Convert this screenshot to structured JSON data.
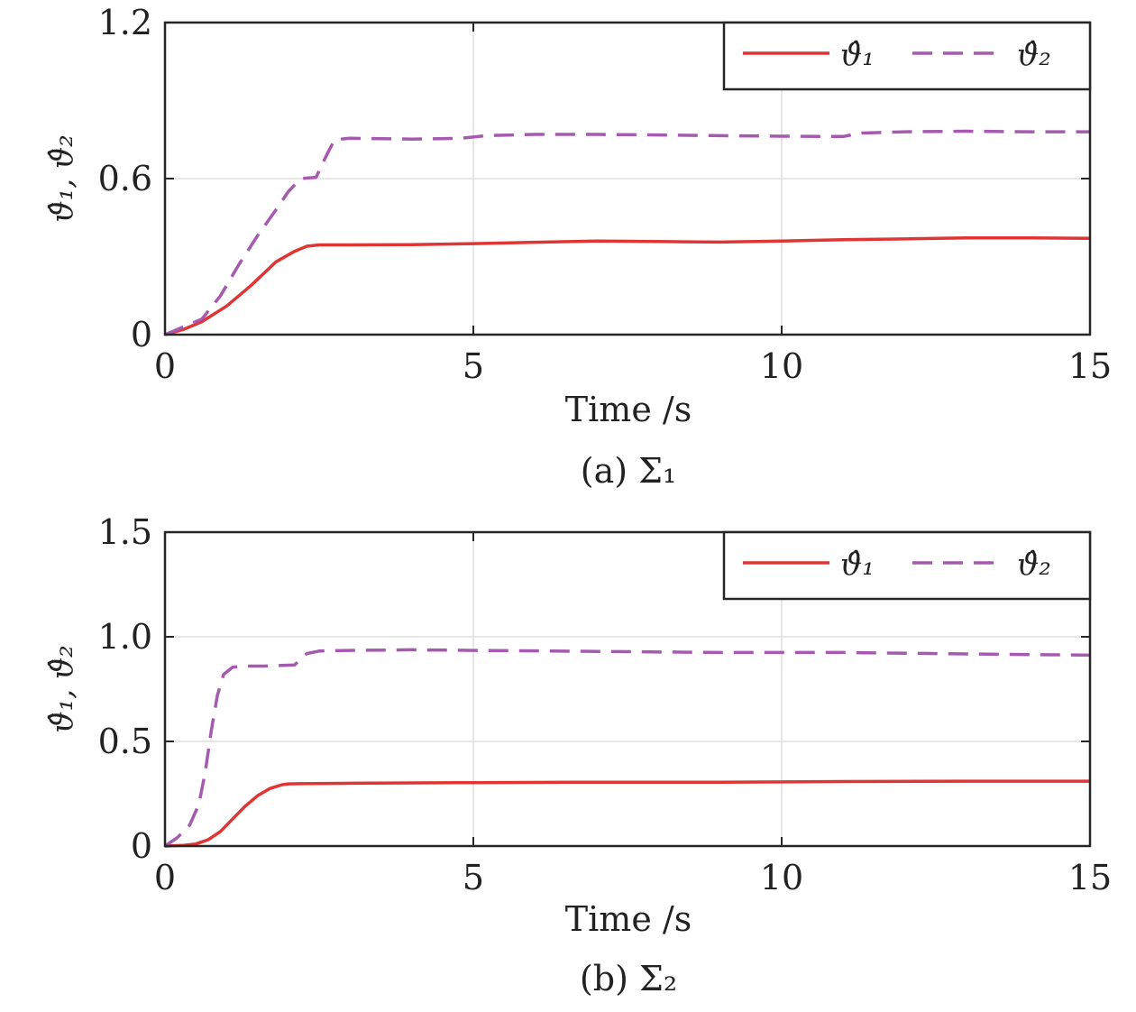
{
  "figure": {
    "colors": {
      "series1": "#e03535",
      "series2": "#a65aaf",
      "grid": "#dddddd",
      "axis": "#262626"
    }
  },
  "chart_data": [
    {
      "type": "line",
      "caption": "(a) Σ₁",
      "xlabel": "Time /s",
      "ylabel": "ϑ̂₁, ϑ̂₂",
      "xlim": [
        0,
        15
      ],
      "ylim": [
        0,
        1.2
      ],
      "xticks": [
        0,
        5,
        10,
        15
      ],
      "xtick_labels": [
        "0",
        "5",
        "10",
        "15"
      ],
      "yticks": [
        0,
        0.6,
        1.2
      ],
      "ytick_labels": [
        "0",
        "0.6",
        "1.2"
      ],
      "grid": true,
      "legend_position": "top-right",
      "series": [
        {
          "name": "ϑ̂₁",
          "style": "solid",
          "color": "#e03535",
          "x": [
            0,
            0.3,
            0.6,
            1.0,
            1.4,
            1.8,
            2.1,
            2.3,
            2.5,
            3.0,
            4.0,
            5.0,
            6.0,
            7.0,
            8.0,
            9.0,
            10.0,
            11.0,
            12.0,
            13.0,
            14.0,
            15.0
          ],
          "y": [
            0,
            0.02,
            0.05,
            0.11,
            0.19,
            0.28,
            0.32,
            0.34,
            0.345,
            0.345,
            0.346,
            0.35,
            0.355,
            0.36,
            0.358,
            0.356,
            0.36,
            0.365,
            0.368,
            0.372,
            0.372,
            0.37
          ]
        },
        {
          "name": "ϑ̂₂",
          "style": "dashed",
          "color": "#a65aaf",
          "x": [
            0,
            0.3,
            0.6,
            0.9,
            1.2,
            1.5,
            1.8,
            2.0,
            2.2,
            2.45,
            2.6,
            2.75,
            3.0,
            4.0,
            4.8,
            5.2,
            6.0,
            7.0,
            8.0,
            9.0,
            10.0,
            11.0,
            11.3,
            12.0,
            13.0,
            14.0,
            15.0
          ],
          "y": [
            0,
            0.03,
            0.06,
            0.15,
            0.27,
            0.38,
            0.48,
            0.55,
            0.6,
            0.605,
            0.68,
            0.75,
            0.755,
            0.752,
            0.755,
            0.765,
            0.77,
            0.77,
            0.768,
            0.765,
            0.763,
            0.762,
            0.775,
            0.78,
            0.782,
            0.78,
            0.78
          ]
        }
      ]
    },
    {
      "type": "line",
      "caption": "(b) Σ₂",
      "xlabel": "Time /s",
      "ylabel": "ϑ̂₁, ϑ̂₂",
      "xlim": [
        0,
        15
      ],
      "ylim": [
        0,
        1.5
      ],
      "xticks": [
        0,
        5,
        10,
        15
      ],
      "xtick_labels": [
        "0",
        "5",
        "10",
        "15"
      ],
      "yticks": [
        0,
        0.5,
        1.0,
        1.5
      ],
      "ytick_labels": [
        "0",
        "0.5",
        "1.0",
        "1.5"
      ],
      "grid": true,
      "legend_position": "top-right",
      "series": [
        {
          "name": "ϑ̂₁",
          "style": "solid",
          "color": "#e03535",
          "x": [
            0,
            0.3,
            0.5,
            0.7,
            0.9,
            1.1,
            1.3,
            1.5,
            1.7,
            1.9,
            2.0,
            2.2,
            3.0,
            5.0,
            7.0,
            9.0,
            11.0,
            13.0,
            15.0
          ],
          "y": [
            0,
            0.003,
            0.01,
            0.03,
            0.07,
            0.13,
            0.19,
            0.24,
            0.275,
            0.293,
            0.297,
            0.298,
            0.3,
            0.303,
            0.305,
            0.305,
            0.308,
            0.31,
            0.31
          ]
        },
        {
          "name": "ϑ̂₂",
          "style": "dashed",
          "color": "#a65aaf",
          "x": [
            0,
            0.2,
            0.4,
            0.55,
            0.65,
            0.75,
            0.85,
            0.95,
            1.1,
            1.3,
            1.6,
            2.1,
            2.3,
            2.5,
            3.0,
            4.0,
            5.0,
            7.0,
            9.0,
            11.0,
            13.0,
            15.0
          ],
          "y": [
            0,
            0.04,
            0.1,
            0.2,
            0.35,
            0.55,
            0.72,
            0.82,
            0.855,
            0.86,
            0.86,
            0.865,
            0.92,
            0.932,
            0.935,
            0.938,
            0.935,
            0.93,
            0.925,
            0.925,
            0.918,
            0.912
          ]
        }
      ]
    }
  ]
}
